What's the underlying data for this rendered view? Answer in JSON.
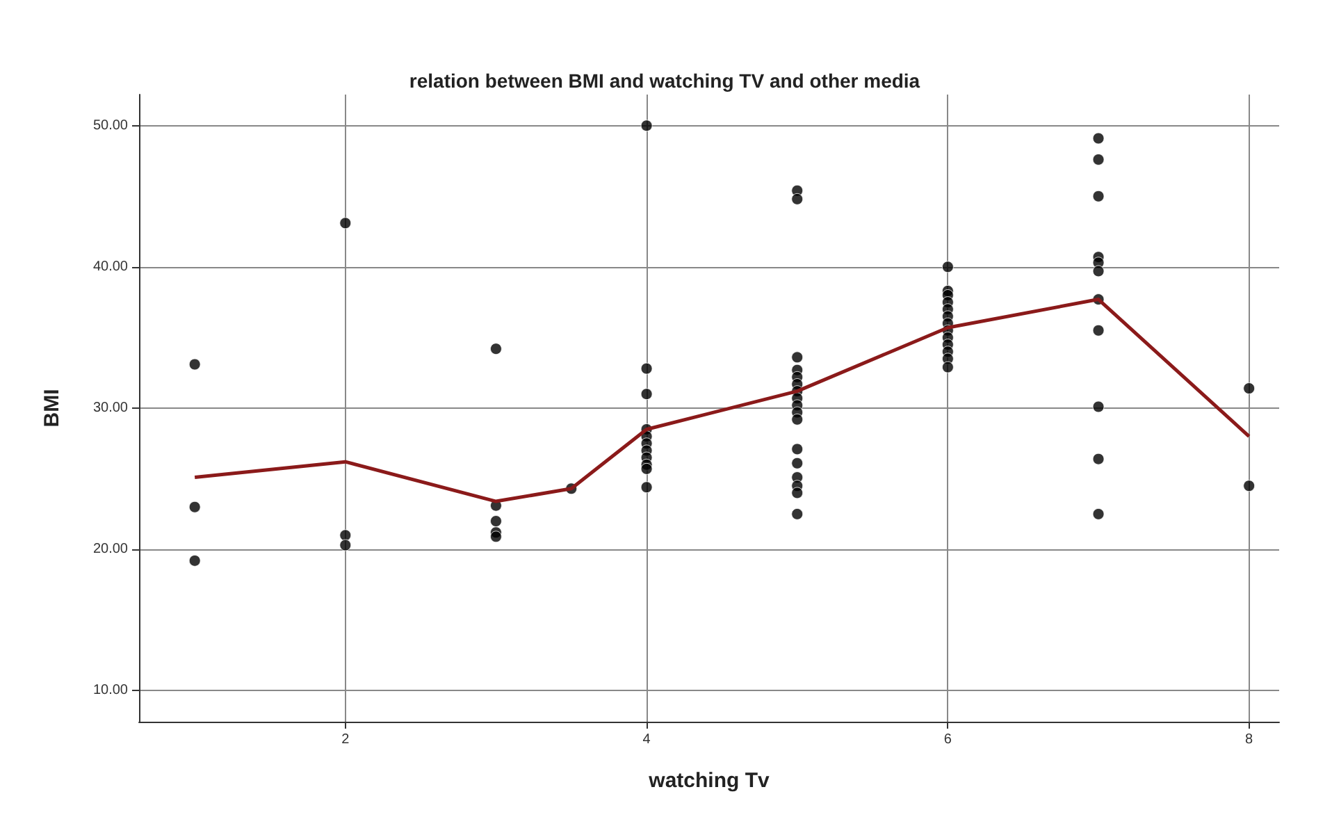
{
  "chart_data": {
    "type": "scatter",
    "title": "relation between BMI and watching TV and other media",
    "xlabel": "watching Tv",
    "ylabel": "BMI",
    "xlim": [
      0.63,
      8.2
    ],
    "xticks": [
      2,
      4,
      6,
      8
    ],
    "ylim": [
      7.8,
      52.2
    ],
    "yticks": [
      {
        "value": 10,
        "label": "10.00"
      },
      {
        "value": 20,
        "label": "20.00"
      },
      {
        "value": 30,
        "label": "30.00"
      },
      {
        "value": 40,
        "label": "40.00"
      },
      {
        "value": 50,
        "label": "50.00"
      }
    ],
    "grid": true,
    "series": [
      {
        "color": "#000000",
        "marker": "circle",
        "x": [
          1,
          1,
          1,
          2,
          2,
          2,
          3,
          3,
          3,
          3,
          3,
          3.5,
          4,
          4,
          4,
          4,
          4,
          4,
          4,
          4,
          4,
          4,
          4,
          5,
          5,
          5,
          5,
          5,
          5,
          5,
          5,
          5,
          5,
          5,
          5,
          5,
          5,
          5,
          5,
          5,
          6,
          6,
          6,
          6,
          6,
          6,
          6,
          6,
          6,
          6,
          6,
          6,
          6,
          7,
          7,
          7,
          7,
          7,
          7,
          7,
          7,
          7,
          7,
          7,
          8,
          8
        ],
        "values": [
          33.1,
          23.0,
          19.2,
          43.1,
          21.0,
          20.3,
          34.2,
          23.1,
          22.0,
          21.2,
          20.9,
          24.3,
          50.0,
          32.8,
          31.0,
          28.5,
          28.0,
          27.5,
          27.0,
          26.5,
          26.0,
          25.7,
          24.4,
          45.4,
          44.8,
          33.6,
          32.7,
          32.2,
          31.7,
          31.2,
          30.7,
          30.2,
          29.7,
          29.2,
          27.1,
          26.1,
          25.1,
          24.5,
          24.0,
          22.5,
          40.0,
          38.3,
          38.0,
          37.5,
          37.0,
          36.5,
          36.0,
          35.5,
          35.0,
          34.5,
          34.0,
          33.5,
          32.9,
          49.1,
          47.6,
          45.0,
          40.7,
          40.3,
          39.7,
          37.7,
          35.5,
          30.1,
          26.4,
          22.5,
          31.4,
          24.5
        ]
      },
      {
        "type": "line",
        "color": "#8b1a1a",
        "marker": "none",
        "line_style": "solid",
        "x": [
          1,
          2,
          3,
          3.5,
          4,
          5,
          6,
          7,
          8
        ],
        "values": [
          25.1,
          26.2,
          23.4,
          24.3,
          28.5,
          31.2,
          35.7,
          37.7,
          28.0
        ]
      }
    ]
  }
}
